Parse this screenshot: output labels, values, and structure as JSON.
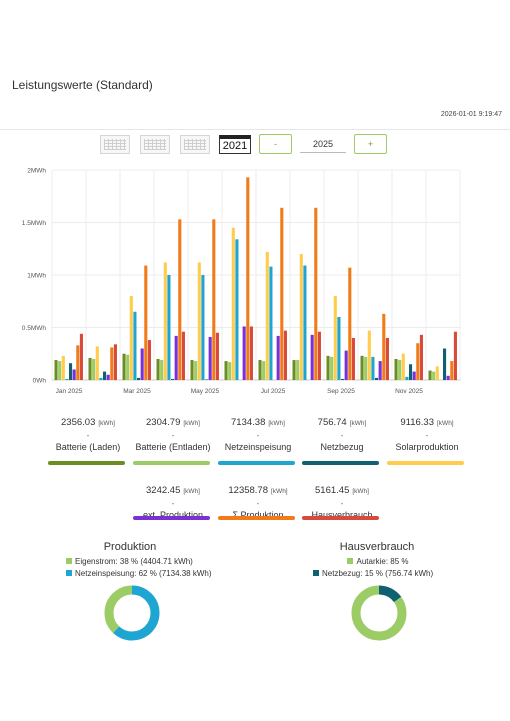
{
  "page": {
    "title": "Leistungswerte (Standard)",
    "timestamp": "2026-01-01 9:19:47"
  },
  "toolbar": {
    "year_button": "2021",
    "minus": "-",
    "year_value": "2025",
    "plus": "+"
  },
  "colors": {
    "batt_laden": "#6b8e23",
    "batt_entladen": "#9ccc65",
    "netzeinspeisung": "#1ea5d2",
    "netzbezug": "#0f6070",
    "solar": "#ffcd4b",
    "ext": "#7a31d4",
    "sum_prod": "#f07b18",
    "haus": "#d94a3a",
    "accent": "#8bc34a"
  },
  "chart_data": {
    "type": "bar",
    "categories": [
      "Jan 2025",
      "Feb 2025",
      "Mar 2025",
      "Apr 2025",
      "May 2025",
      "Jun 2025",
      "Jul 2025",
      "Aug 2025",
      "Sep 2025",
      "Oct 2025",
      "Nov 2025",
      "Dec 2025"
    ],
    "x_tick_labels": [
      "Jan 2025",
      "",
      "Mar 2025",
      "",
      "May 2025",
      "",
      "Jul 2025",
      "",
      "Sep 2025",
      "",
      "Nov 2025",
      ""
    ],
    "y_tick_labels": [
      "0Wh",
      "0.5MWh",
      "1MWh",
      "1.5MWh",
      "2MWh"
    ],
    "ylim": [
      0,
      2000
    ],
    "y_unit": "kWh",
    "grid": true,
    "series": [
      {
        "name": "Batterie (Laden)",
        "values": [
          190,
          210,
          250,
          200,
          190,
          180,
          190,
          190,
          230,
          230,
          200,
          90
        ]
      },
      {
        "name": "Batterie (Entladen)",
        "values": [
          180,
          200,
          240,
          190,
          180,
          170,
          180,
          190,
          220,
          220,
          190,
          80
        ]
      },
      {
        "name": "Solarproduktion",
        "values": [
          230,
          320,
          800,
          1120,
          1120,
          1450,
          1220,
          1200,
          800,
          470,
          250,
          130
        ]
      },
      {
        "name": "Netzeinspeisung",
        "values": [
          10,
          20,
          650,
          1000,
          1000,
          1340,
          1080,
          1090,
          600,
          220,
          30,
          0
        ]
      },
      {
        "name": "Netzbezug",
        "values": [
          160,
          80,
          20,
          10,
          5,
          0,
          0,
          0,
          10,
          20,
          150,
          300
        ]
      },
      {
        "name": "ext. Produktion",
        "values": [
          100,
          50,
          300,
          420,
          410,
          510,
          420,
          430,
          280,
          180,
          80,
          40
        ]
      },
      {
        "name": "Σ Produktion",
        "values": [
          330,
          310,
          1090,
          1530,
          1530,
          1930,
          1640,
          1640,
          1070,
          630,
          350,
          180
        ]
      },
      {
        "name": "Hausverbrauch",
        "values": [
          440,
          340,
          380,
          460,
          450,
          510,
          470,
          460,
          400,
          400,
          430,
          460
        ]
      }
    ]
  },
  "stats": [
    {
      "value": "2356.03",
      "unit": "[kWh]",
      "dash": "-",
      "label": "Batterie (Laden)"
    },
    {
      "value": "2304.79",
      "unit": "[kWh]",
      "dash": "-",
      "label": "Batterie (Entladen)"
    },
    {
      "value": "7134.38",
      "unit": "[kWh]",
      "dash": "-",
      "label": "Netzeinspeisung"
    },
    {
      "value": "756.74",
      "unit": "[kWh]",
      "dash": "-",
      "label": "Netzbezug"
    },
    {
      "value": "9116.33",
      "unit": "[kWh]",
      "dash": "-",
      "label": "Solarproduktion"
    },
    {
      "value": "3242.45",
      "unit": "[kWh]",
      "dash": "-",
      "label": "ext. Produktion"
    },
    {
      "value": "12358.78",
      "unit": "[kWh]",
      "dash": "-",
      "label": "Σ Produktion"
    },
    {
      "value": "5161.45",
      "unit": "[kWh]",
      "dash": "-",
      "label": "Hausverbrauch"
    }
  ],
  "produktion": {
    "title": "Produktion",
    "legend": [
      {
        "label": "Eigenstrom: 38 % (4404.71 kWh)",
        "percent": 38
      },
      {
        "label": "Netzeinspeisung: 62 % (7134.38 kWh)",
        "percent": 62
      }
    ]
  },
  "hausverbrauch": {
    "title": "Hausverbrauch",
    "legend": [
      {
        "label": "Autarkie: 85 %",
        "percent": 85
      },
      {
        "label": "Netzbezug: 15 % (756.74 kWh)",
        "percent": 15
      }
    ]
  }
}
